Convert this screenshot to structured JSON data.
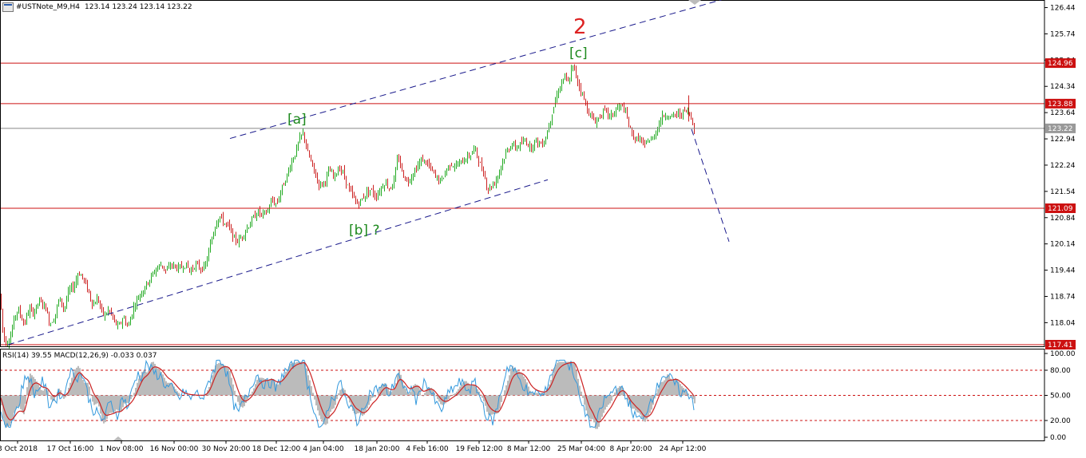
{
  "chart_header": {
    "symbol": "#USTNote_M9,H4",
    "ohlc": "123.14 123.24 123.14 123.22"
  },
  "indicator_header": {
    "label": "RSI(14) 39.55 MACD(12,26,9) -0.033 0.037"
  },
  "colors": {
    "bull_candle": "#22aa22",
    "bear_candle": "#cc2222",
    "level_line": "#cc1111",
    "channel": "#1a1a8c",
    "wave_label": "#1e8a1e",
    "major_wave_label": "#dd2222",
    "rsi_line": "#3399dd",
    "macd_signal": "#cc2222",
    "macd_hist": "#bbbbbb",
    "current_price_tag": "#999999"
  },
  "chart_data": {
    "type": "candlestick",
    "instrument": "#USTNote_M9",
    "timeframe": "H4",
    "ylim": [
      117.41,
      126.7
    ],
    "y_ticks": [
      "126.44",
      "125.74",
      "125.04",
      "124.34",
      "123.64",
      "122.94",
      "122.24",
      "121.54",
      "120.84",
      "120.14",
      "119.44",
      "118.74",
      "118.04"
    ],
    "x_ticks": [
      "3 Oct 2018",
      "17 Oct 16:00",
      "1 Nov 08:00",
      "16 Nov 00:00",
      "30 Nov 20:00",
      "18 Dec 12:00",
      "4 Jan 04:00",
      "18 Jan 20:00",
      "4 Feb 16:00",
      "19 Feb 12:00",
      "8 Mar 12:00",
      "25 Mar 04:00",
      "8 Apr 20:00",
      "24 Apr 12:00"
    ],
    "price_path": [
      [
        0,
        118.8
      ],
      [
        2,
        118.0
      ],
      [
        6,
        117.5
      ],
      [
        12,
        117.6
      ],
      [
        18,
        118.2
      ],
      [
        22,
        118.4
      ],
      [
        30,
        118.0
      ],
      [
        36,
        118.4
      ],
      [
        42,
        118.3
      ],
      [
        48,
        118.6
      ],
      [
        56,
        118.5
      ],
      [
        62,
        118.0
      ],
      [
        68,
        118.2
      ],
      [
        74,
        118.7
      ],
      [
        80,
        118.4
      ],
      [
        86,
        118.9
      ],
      [
        92,
        119.0
      ],
      [
        98,
        119.4
      ],
      [
        104,
        119.2
      ],
      [
        110,
        118.9
      ],
      [
        116,
        118.5
      ],
      [
        122,
        118.7
      ],
      [
        126,
        118.4
      ],
      [
        130,
        118.2
      ],
      [
        136,
        118.4
      ],
      [
        142,
        118.1
      ],
      [
        148,
        117.9
      ],
      [
        154,
        118.2
      ],
      [
        160,
        117.9
      ],
      [
        166,
        118.4
      ],
      [
        172,
        118.7
      ],
      [
        178,
        118.9
      ],
      [
        184,
        119.1
      ],
      [
        190,
        119.3
      ],
      [
        196,
        119.5
      ],
      [
        202,
        119.6
      ],
      [
        208,
        119.4
      ],
      [
        214,
        119.6
      ],
      [
        220,
        119.5
      ],
      [
        226,
        119.5
      ],
      [
        232,
        119.6
      ],
      [
        238,
        119.4
      ],
      [
        244,
        119.6
      ],
      [
        250,
        119.5
      ],
      [
        256,
        119.5
      ],
      [
        262,
        120.0
      ],
      [
        266,
        120.4
      ],
      [
        270,
        120.7
      ],
      [
        274,
        120.9
      ],
      [
        280,
        120.7
      ],
      [
        286,
        120.6
      ],
      [
        292,
        120.3
      ],
      [
        298,
        120.2
      ],
      [
        304,
        120.4
      ],
      [
        310,
        120.6
      ],
      [
        316,
        120.8
      ],
      [
        322,
        121.0
      ],
      [
        328,
        120.9
      ],
      [
        334,
        121.0
      ],
      [
        340,
        121.3
      ],
      [
        346,
        121.2
      ],
      [
        352,
        121.6
      ],
      [
        358,
        121.9
      ],
      [
        364,
        122.3
      ],
      [
        370,
        122.6
      ],
      [
        376,
        123.0
      ],
      [
        380,
        123.1
      ],
      [
        384,
        122.6
      ],
      [
        388,
        122.4
      ],
      [
        394,
        122.0
      ],
      [
        400,
        121.7
      ],
      [
        406,
        121.8
      ],
      [
        412,
        122.1
      ],
      [
        418,
        121.9
      ],
      [
        424,
        122.2
      ],
      [
        430,
        122.0
      ],
      [
        436,
        121.6
      ],
      [
        442,
        121.4
      ],
      [
        446,
        121.2
      ],
      [
        452,
        121.3
      ],
      [
        458,
        121.5
      ],
      [
        464,
        121.6
      ],
      [
        470,
        121.4
      ],
      [
        476,
        121.6
      ],
      [
        482,
        121.8
      ],
      [
        488,
        121.6
      ],
      [
        494,
        121.9
      ],
      [
        498,
        122.5
      ],
      [
        504,
        122.0
      ],
      [
        510,
        121.8
      ],
      [
        516,
        122.0
      ],
      [
        522,
        122.2
      ],
      [
        528,
        122.4
      ],
      [
        534,
        122.3
      ],
      [
        540,
        122.1
      ],
      [
        546,
        121.9
      ],
      [
        552,
        121.8
      ],
      [
        558,
        122.1
      ],
      [
        564,
        122.3
      ],
      [
        570,
        122.2
      ],
      [
        576,
        122.3
      ],
      [
        582,
        122.4
      ],
      [
        588,
        122.5
      ],
      [
        594,
        122.7
      ],
      [
        600,
        122.3
      ],
      [
        606,
        122.0
      ],
      [
        610,
        121.6
      ],
      [
        616,
        121.7
      ],
      [
        622,
        121.9
      ],
      [
        628,
        122.3
      ],
      [
        634,
        122.6
      ],
      [
        640,
        122.8
      ],
      [
        646,
        122.7
      ],
      [
        652,
        122.8
      ],
      [
        658,
        122.9
      ],
      [
        664,
        122.7
      ],
      [
        670,
        122.9
      ],
      [
        676,
        122.8
      ],
      [
        682,
        122.9
      ],
      [
        688,
        123.4
      ],
      [
        694,
        123.9
      ],
      [
        700,
        124.3
      ],
      [
        706,
        124.6
      ],
      [
        712,
        124.4
      ],
      [
        716,
        124.9
      ],
      [
        720,
        124.7
      ],
      [
        724,
        124.4
      ],
      [
        728,
        124.2
      ],
      [
        732,
        123.9
      ],
      [
        736,
        123.7
      ],
      [
        740,
        123.5
      ],
      [
        746,
        123.4
      ],
      [
        752,
        123.6
      ],
      [
        758,
        123.7
      ],
      [
        764,
        123.5
      ],
      [
        770,
        123.7
      ],
      [
        776,
        123.8
      ],
      [
        780,
        123.8
      ],
      [
        786,
        123.4
      ],
      [
        790,
        123.1
      ],
      [
        796,
        122.9
      ],
      [
        800,
        123.0
      ],
      [
        806,
        122.7
      ],
      [
        810,
        122.9
      ],
      [
        816,
        122.9
      ],
      [
        822,
        123.2
      ],
      [
        828,
        123.5
      ],
      [
        834,
        123.6
      ],
      [
        840,
        123.5
      ],
      [
        846,
        123.6
      ],
      [
        852,
        123.6
      ],
      [
        858,
        123.7
      ],
      [
        862,
        123.6
      ],
      [
        866,
        123.5
      ],
      [
        869,
        123.2
      ]
    ],
    "horizontal_levels": [
      "124.96",
      "123.88",
      "121.09",
      "117.41"
    ],
    "current_price": "123.22",
    "wave_labels": [
      "2",
      "[c]",
      "[a]",
      "[b] ?"
    ],
    "indicator": {
      "rsi_period": 14,
      "rsi_value": 39.55,
      "macd": [
        12,
        26,
        9
      ],
      "macd_value": -0.033,
      "macd_signal": 0.037,
      "ylim": [
        0,
        100
      ],
      "y_ticks": [
        "100.00",
        "80.00",
        "50.00",
        "20.00",
        "0.00"
      ],
      "levels": [
        80,
        50,
        20
      ]
    }
  }
}
